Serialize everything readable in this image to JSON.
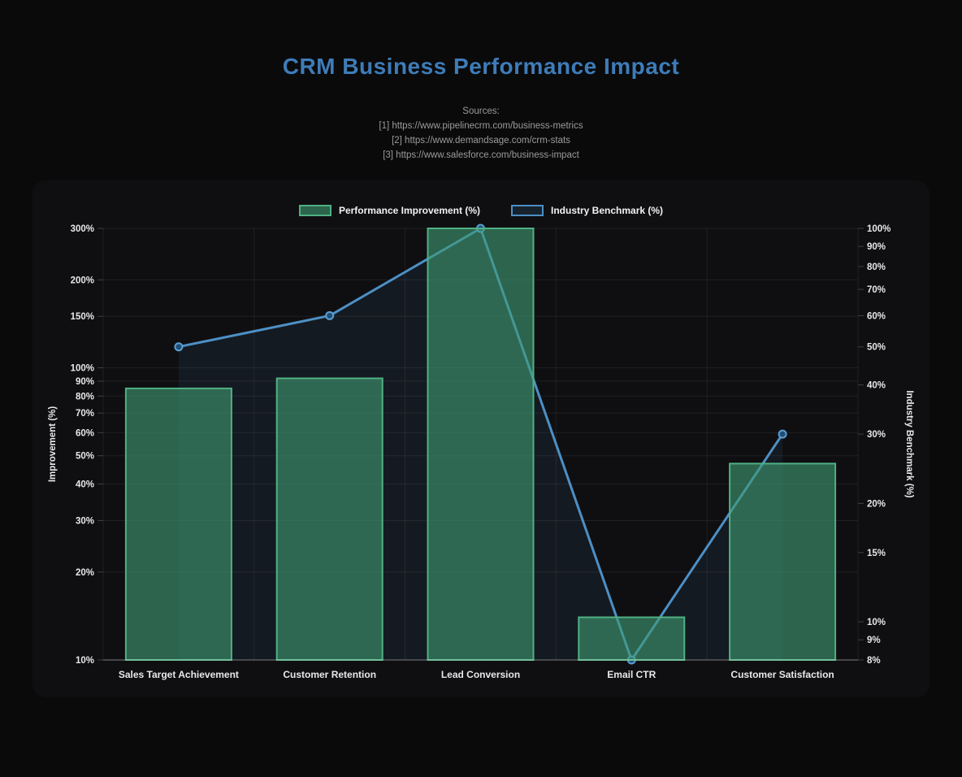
{
  "page": {
    "title": "CRM Business Performance Impact"
  },
  "sources": {
    "heading": "Sources:",
    "items": [
      "[1] https://www.pipelinecrm.com/business-metrics",
      "[2] https://www.demandsage.com/crm-stats",
      "[3] https://www.salesforce.com/business-impact"
    ]
  },
  "chart_data": {
    "type": "bar",
    "subtype": "bar-line-combo-dual-axis",
    "categories": [
      "Sales Target Achievement",
      "Customer Retention",
      "Lead Conversion",
      "Email CTR",
      "Customer Satisfaction"
    ],
    "series": [
      {
        "name": "Performance Improvement (%)",
        "type": "bar",
        "axis": "left",
        "values": [
          85,
          92,
          300,
          14,
          47
        ]
      },
      {
        "name": "Industry Benchmark (%)",
        "type": "line",
        "axis": "right",
        "values": [
          50,
          60,
          100,
          8,
          30
        ]
      }
    ],
    "title": "CRM Business Performance Impact",
    "xlabel": "",
    "left_axis": {
      "label": "Improvement (%)",
      "scale": "log",
      "min": 10,
      "max": 300,
      "tick_values": [
        300,
        200,
        150,
        100,
        90,
        80,
        70,
        60,
        50,
        40,
        30,
        20,
        10
      ],
      "tick_suffix": "%"
    },
    "right_axis": {
      "label": "Industry Benchmark (%)",
      "scale": "log",
      "min": 8,
      "max": 100,
      "tick_values": [
        100,
        90,
        80,
        70,
        60,
        50,
        40,
        30,
        20,
        15,
        10,
        9,
        8
      ],
      "tick_suffix": "%"
    },
    "legend_position": "top-center",
    "grid": true,
    "colors": {
      "title": "#3e7cb8",
      "page_bg": "#0a0a0b",
      "panel_bg": "#0f0f12",
      "bar_fill": "rgba(63,157,116,0.6)",
      "bar_border": "#4fb183",
      "line": "#4d8fc4",
      "line_area": "rgba(77,143,194,0.09)",
      "marker_fill": "#1e4e78",
      "marker_stroke": "#5b9fd0",
      "legend_line_swatch_fill": "#17222d",
      "grid_line": "rgba(255,255,255,0.07)",
      "axis_line": "rgba(255,255,255,0.2)",
      "tick_text": "#e8e8e8",
      "sources_text": "#9b9b9b"
    }
  }
}
